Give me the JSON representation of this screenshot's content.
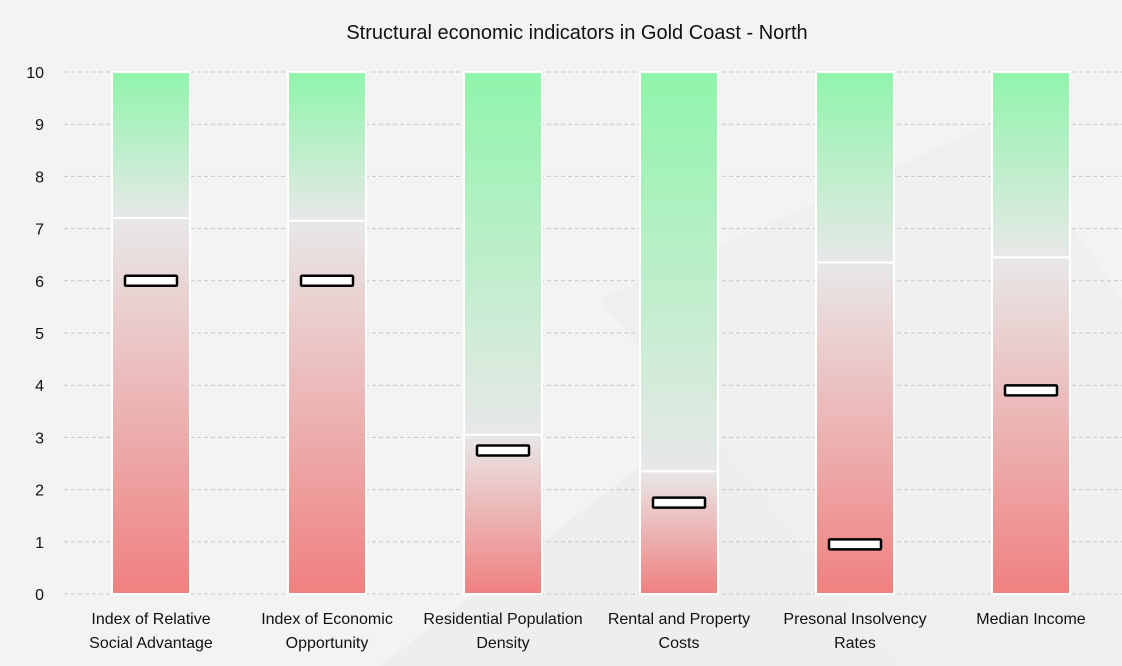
{
  "chart_data": {
    "type": "bar",
    "title": "Structural economic indicators in Gold Coast - North",
    "xlabel": "",
    "ylabel": "",
    "ylim": [
      0,
      10
    ],
    "yticks": [
      0,
      1,
      2,
      3,
      4,
      5,
      6,
      7,
      8,
      9,
      10
    ],
    "grid": true,
    "categories": [
      [
        "Index of Relative",
        "Social Advantage"
      ],
      [
        "Index of Economic",
        "Opportunity"
      ],
      [
        "Residential Population",
        "Density"
      ],
      [
        "Rental and Property",
        "Costs"
      ],
      [
        "Presonal Insolvency",
        "Rates"
      ],
      [
        "Median Income"
      ]
    ],
    "bar_range": [
      0,
      10
    ],
    "band_thresholds": [
      7.2,
      7.15,
      3.05,
      2.35,
      6.35,
      6.45
    ],
    "markers": [
      6.0,
      6.0,
      2.75,
      1.75,
      0.95,
      3.9
    ],
    "colors": {
      "low": "#f08080",
      "mid": "#e8e8e8",
      "high": "#8ff5ab",
      "marker_fill": "#ffffff",
      "marker_stroke": "#000000"
    }
  }
}
